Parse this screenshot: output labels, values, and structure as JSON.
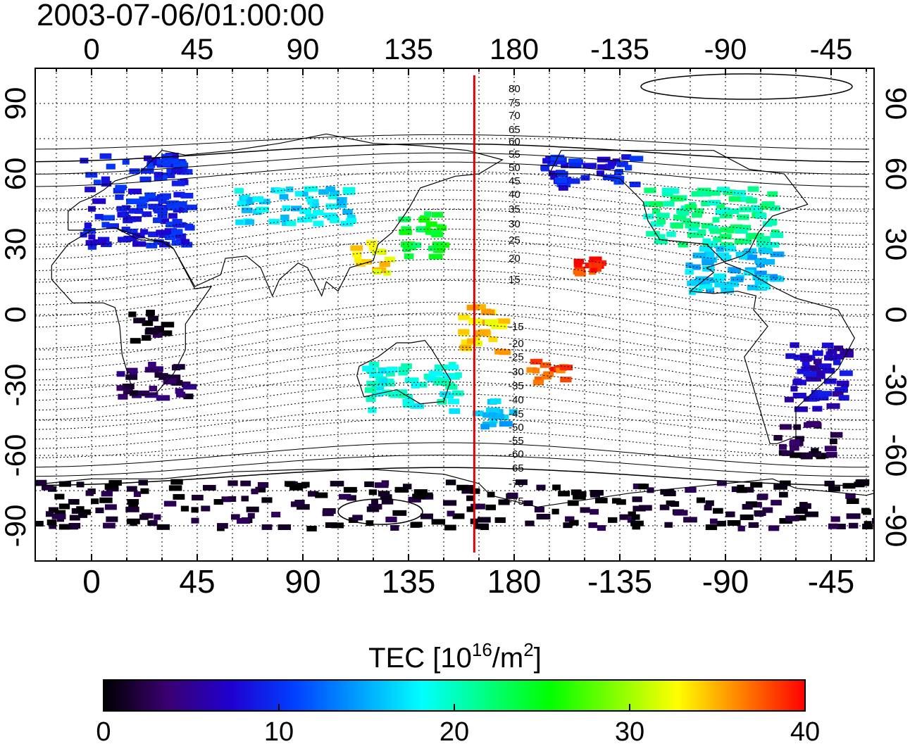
{
  "timestamp": "2003-07-06/01:00:00",
  "map": {
    "lon_ticks": [
      "0",
      "45",
      "90",
      "135",
      "180",
      "-135",
      "-90",
      "-45"
    ],
    "lat_ticks": [
      "90",
      "60",
      "30",
      "0",
      "-30",
      "-60",
      "-90"
    ],
    "contour_labels": [
      "80",
      "75",
      "70",
      "65",
      "60",
      "55",
      "50",
      "45",
      "40",
      "35",
      "30",
      "25",
      "20",
      "15",
      "-15",
      "-20",
      "-25",
      "-30",
      "-35",
      "-40",
      "-45",
      "-50",
      "-55",
      "-60",
      "-65",
      "-70",
      "-75"
    ],
    "meridian_lon": 163,
    "meridian_color": "#e00000",
    "data_regions": [
      {
        "lon_min": -5,
        "lon_max": 40,
        "lat_min": 30,
        "lat_max": 70,
        "tec": 9
      },
      {
        "lon_min": 130,
        "lon_max": 150,
        "lat_min": 25,
        "lat_max": 45,
        "tec": 24
      },
      {
        "lon_min": 110,
        "lon_max": 125,
        "lat_min": 18,
        "lat_max": 32,
        "tec": 33
      },
      {
        "lon_min": 155,
        "lon_max": 175,
        "lat_min": -15,
        "lat_max": 5,
        "tec": 34
      },
      {
        "lon_min": 185,
        "lon_max": 200,
        "lat_min": -28,
        "lat_max": -18,
        "tec": 38
      },
      {
        "lon_min": 205,
        "lon_max": 215,
        "lat_min": 18,
        "lat_max": 25,
        "tec": 39
      },
      {
        "lon_min": 235,
        "lon_max": 290,
        "lat_min": 30,
        "lat_max": 55,
        "tec": 21
      },
      {
        "lon_min": 190,
        "lon_max": 230,
        "lat_min": 55,
        "lat_max": 70,
        "tec": 9
      },
      {
        "lon_min": 250,
        "lon_max": 290,
        "lat_min": 10,
        "lat_max": 30,
        "tec": 16
      },
      {
        "lon_min": 295,
        "lon_max": 320,
        "lat_min": -40,
        "lat_max": -10,
        "tec": 7
      },
      {
        "lon_min": 290,
        "lon_max": 315,
        "lat_min": -60,
        "lat_max": -45,
        "tec": 2
      },
      {
        "lon_min": 10,
        "lon_max": 40,
        "lat_min": -35,
        "lat_max": -20,
        "tec": 3
      },
      {
        "lon_min": 15,
        "lon_max": 30,
        "lat_min": -10,
        "lat_max": 5,
        "tec": 1
      },
      {
        "lon_min": 115,
        "lon_max": 155,
        "lat_min": -40,
        "lat_max": -20,
        "tec": 19
      },
      {
        "lon_min": 160,
        "lon_max": 178,
        "lat_min": -47,
        "lat_max": -35,
        "tec": 16
      },
      {
        "lon_min": 60,
        "lon_max": 110,
        "lat_min": 40,
        "lat_max": 55,
        "tec": 17
      },
      {
        "lon_min": -20,
        "lon_max": 360,
        "lat_min": -90,
        "lat_max": -70,
        "tec": 1
      }
    ]
  },
  "colorbar": {
    "title": "TEC  [10",
    "title_sup": "16",
    "title_mid": "/m",
    "title_sup2": "2",
    "title_end": "]",
    "min": 0,
    "max": 40,
    "tick_labels": [
      "0",
      "10",
      "20",
      "30",
      "40"
    ],
    "colors": [
      "#000000",
      "#3a0070",
      "#2000d0",
      "#0040ff",
      "#00a0ff",
      "#00ffff",
      "#00ff80",
      "#00ff00",
      "#80ff00",
      "#ffff00",
      "#ff8000",
      "#ff0000"
    ]
  }
}
